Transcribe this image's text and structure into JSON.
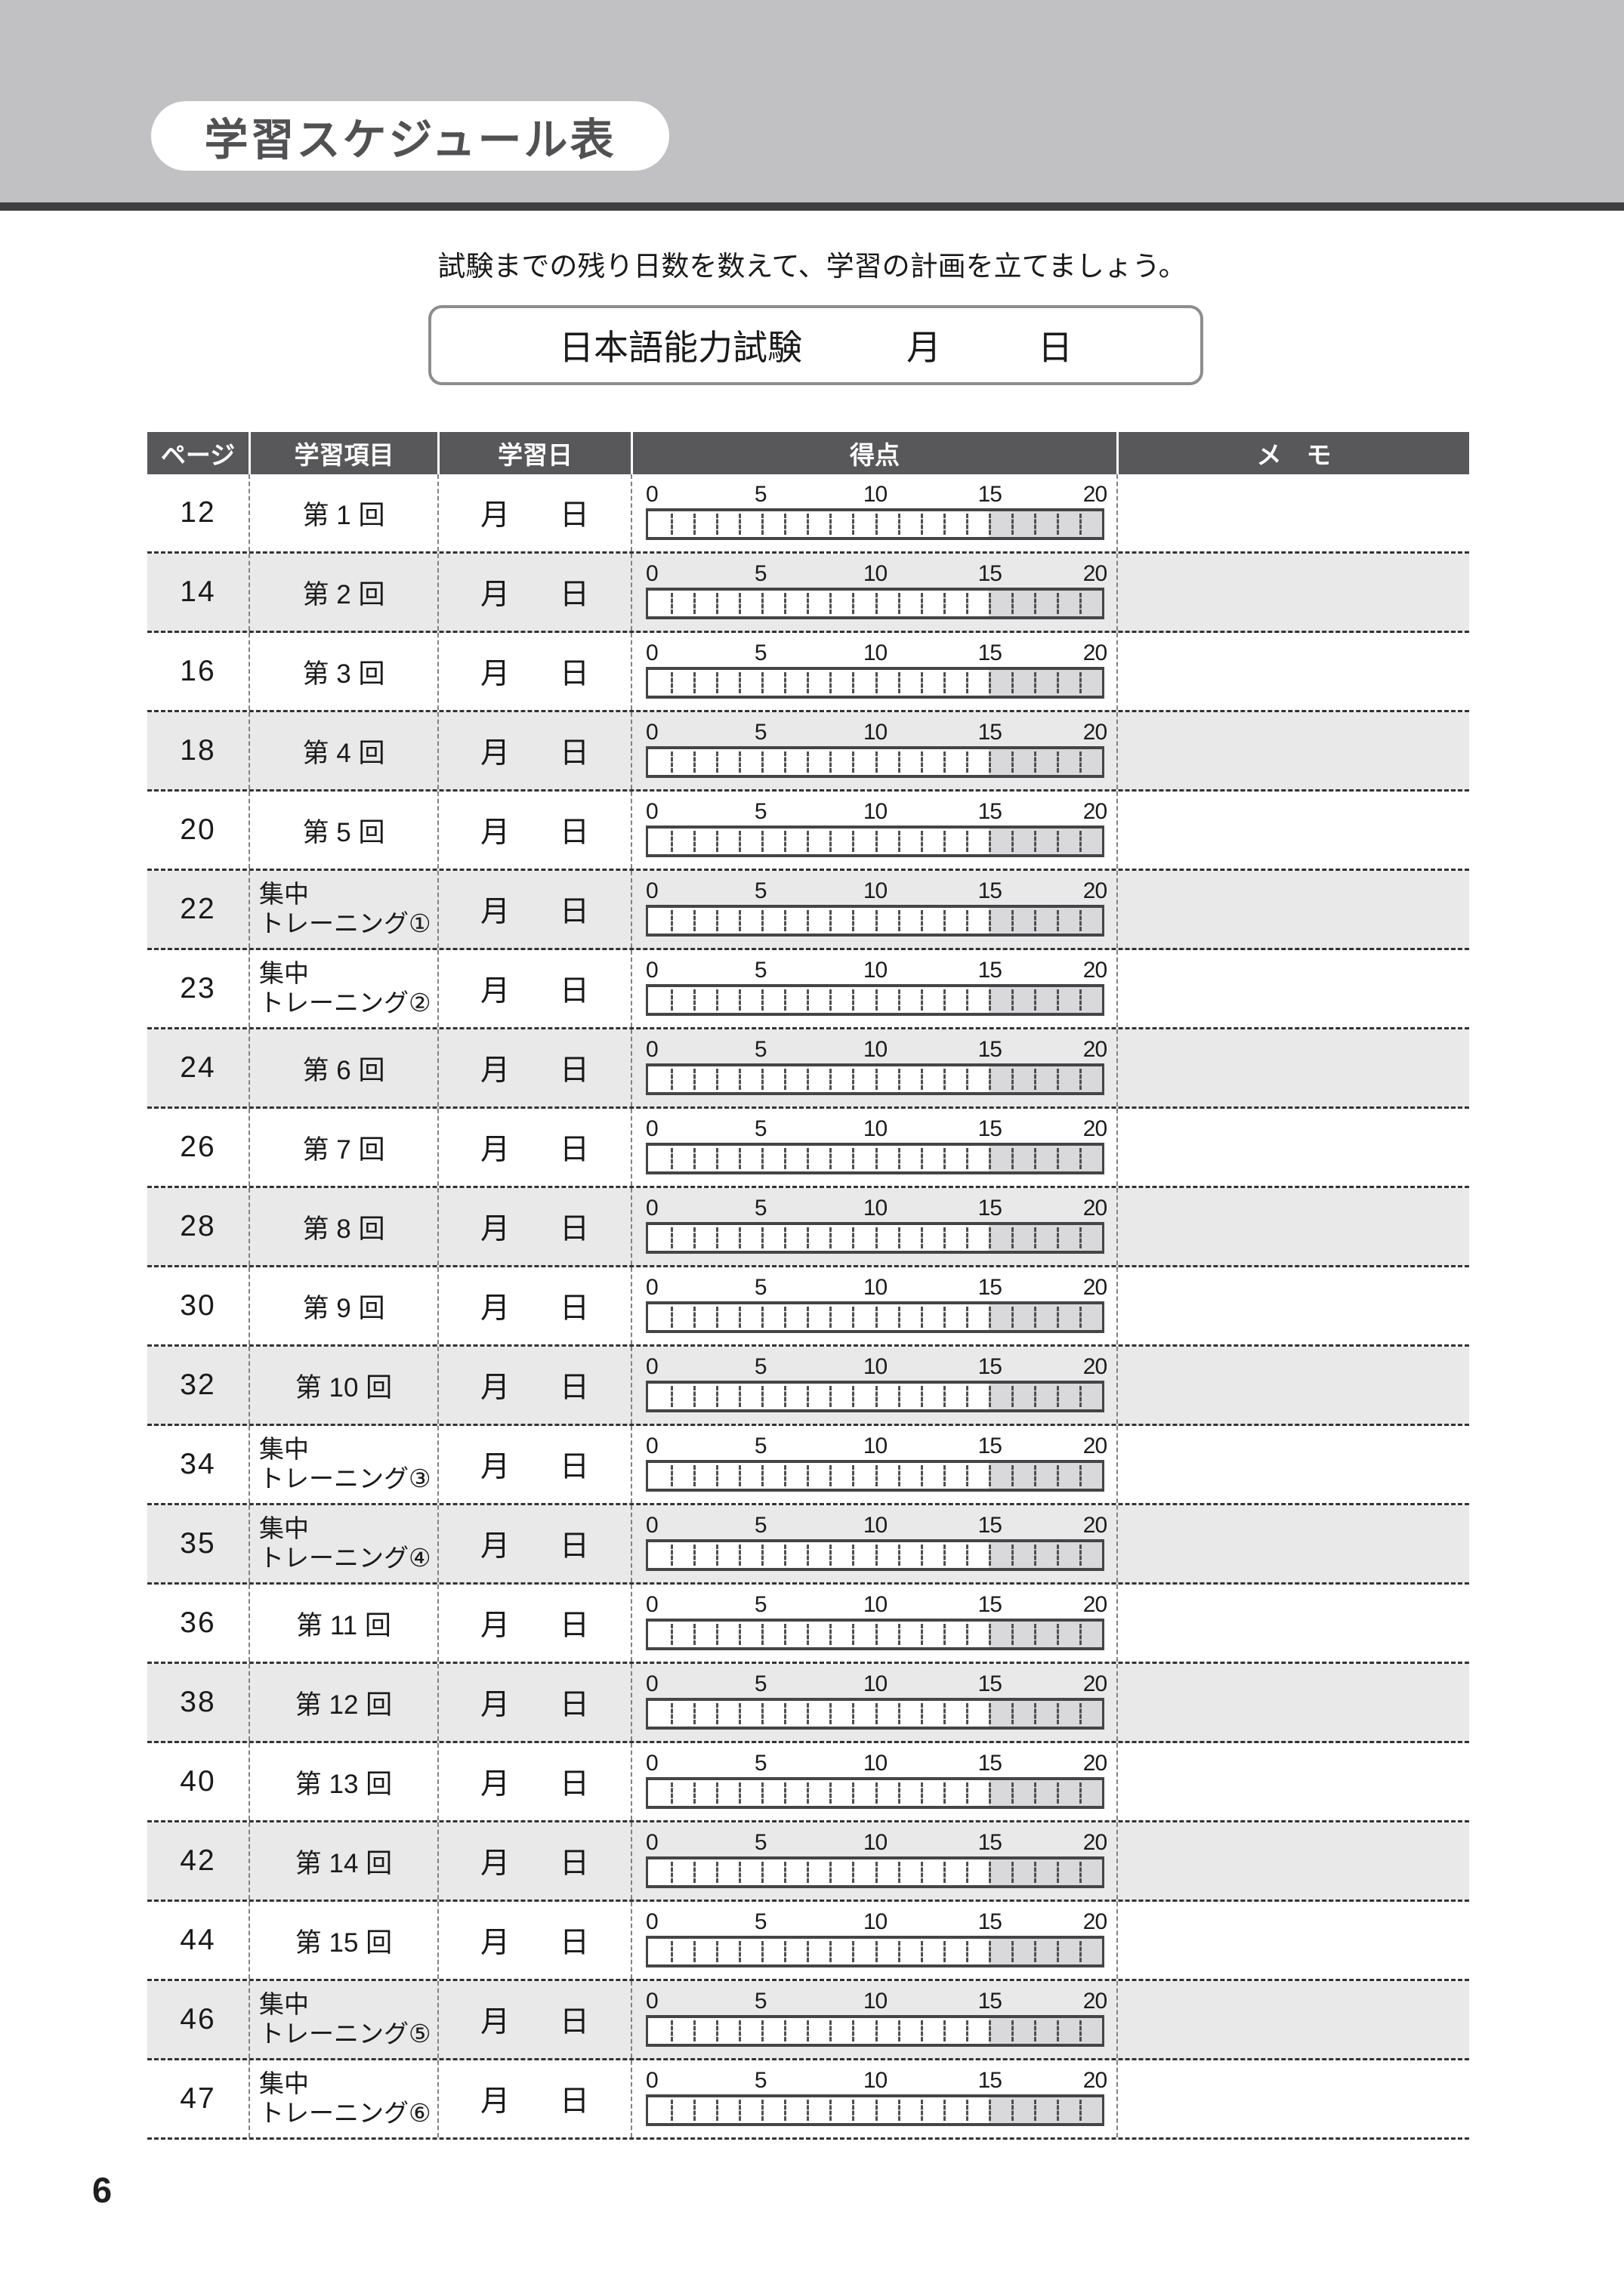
{
  "header": {
    "title": "学習スケジュール表"
  },
  "intro": {
    "instruction": "試験までの残り日数を数えて、学習の計画を立てましょう。"
  },
  "exam_box": {
    "exam_name": "日本語能力試験",
    "month_label": "月",
    "day_label": "日"
  },
  "table": {
    "columns": [
      {
        "label": "ページ"
      },
      {
        "label": "学習項目"
      },
      {
        "label": "学習日"
      },
      {
        "label": "得点"
      },
      {
        "label": "メ　モ"
      }
    ],
    "date_labels": {
      "month": "月",
      "day": "日"
    },
    "scale": {
      "min": 0,
      "max": 20,
      "labels": [
        0,
        5,
        10,
        15,
        20
      ],
      "shaded_from": 15,
      "shaded_to": 20
    },
    "rows": [
      {
        "page": "12",
        "item_lines": [
          "第 1 回"
        ]
      },
      {
        "page": "14",
        "item_lines": [
          "第 2 回"
        ]
      },
      {
        "page": "16",
        "item_lines": [
          "第 3 回"
        ]
      },
      {
        "page": "18",
        "item_lines": [
          "第 4 回"
        ]
      },
      {
        "page": "20",
        "item_lines": [
          "第 5 回"
        ]
      },
      {
        "page": "22",
        "item_lines": [
          "集中",
          "トレーニング①"
        ]
      },
      {
        "page": "23",
        "item_lines": [
          "集中",
          "トレーニング②"
        ]
      },
      {
        "page": "24",
        "item_lines": [
          "第 6 回"
        ]
      },
      {
        "page": "26",
        "item_lines": [
          "第 7 回"
        ]
      },
      {
        "page": "28",
        "item_lines": [
          "第 8 回"
        ]
      },
      {
        "page": "30",
        "item_lines": [
          "第 9 回"
        ]
      },
      {
        "page": "32",
        "item_lines": [
          "第 10 回"
        ]
      },
      {
        "page": "34",
        "item_lines": [
          "集中",
          "トレーニング③"
        ]
      },
      {
        "page": "35",
        "item_lines": [
          "集中",
          "トレーニング④"
        ]
      },
      {
        "page": "36",
        "item_lines": [
          "第 11 回"
        ]
      },
      {
        "page": "38",
        "item_lines": [
          "第 12 回"
        ]
      },
      {
        "page": "40",
        "item_lines": [
          "第 13 回"
        ]
      },
      {
        "page": "42",
        "item_lines": [
          "第 14 回"
        ]
      },
      {
        "page": "44",
        "item_lines": [
          "第 15 回"
        ]
      },
      {
        "page": "46",
        "item_lines": [
          "集中",
          "トレーニング⑤"
        ]
      },
      {
        "page": "47",
        "item_lines": [
          "集中",
          "トレーニング⑥"
        ]
      }
    ]
  },
  "footer": {
    "page_number": "6"
  },
  "colors": {
    "band": "#c1c1c3",
    "rule": "#404042",
    "pill-bg": "#ffffff",
    "pill-text": "#515153",
    "header-bar": "#58585a",
    "header-text": "#ffffff",
    "alt-row": "#e9e9ea",
    "scale-shade": "#d9d9db",
    "scale-border": "#454547",
    "tick": "#4f4f53",
    "box-border": "#8d8d8d",
    "col-divider": "#828284",
    "row-divider": "#333333",
    "text": "#1a1a1a"
  }
}
